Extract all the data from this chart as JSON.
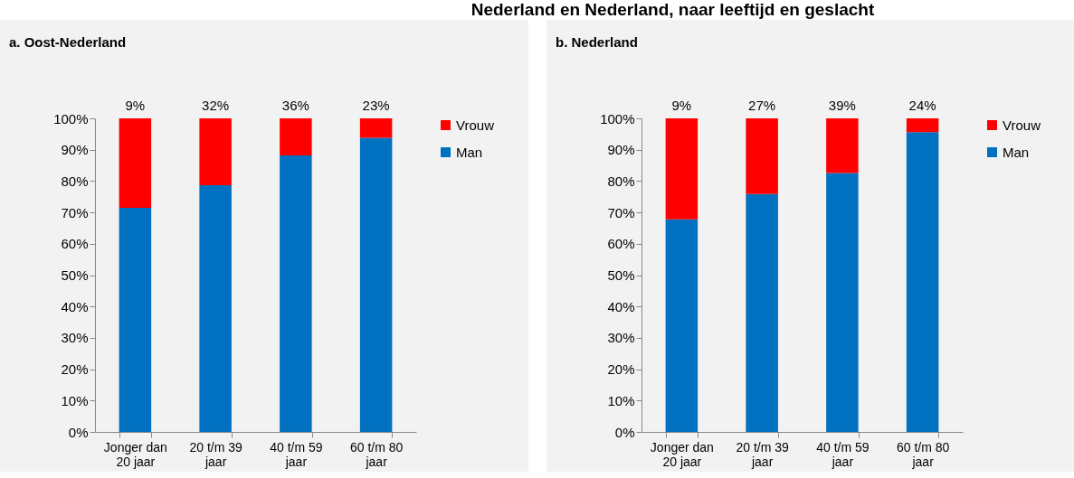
{
  "chart_data": [
    {
      "type": "bar",
      "title": "a. Oost-Nederland",
      "stacked": true,
      "legend": "right",
      "grid": false,
      "categories": [
        "Jonger dan 20 jaar",
        "20 t/m 39 jaar",
        "40 t/m 59 jaar",
        "60 t/m 80 jaar"
      ],
      "series": [
        {
          "name": "Man",
          "color": "#0070c0",
          "values": [
            71.5,
            78.7,
            88.2,
            93.8
          ]
        },
        {
          "name": "Vrouw",
          "color": "#ff0000",
          "values": [
            28.5,
            21.3,
            11.8,
            6.2
          ]
        }
      ],
      "ylim": [
        0,
        100
      ],
      "yticks": [
        {
          "value": 0,
          "label": "0%"
        },
        {
          "value": 10,
          "label": "10%"
        },
        {
          "value": 20,
          "label": "20%"
        },
        {
          "value": 30,
          "label": "30%"
        },
        {
          "value": 40,
          "label": "40%"
        },
        {
          "value": 50,
          "label": "50%"
        },
        {
          "value": 60,
          "label": "60%"
        },
        {
          "value": 70,
          "label": "70%"
        },
        {
          "value": 80,
          "label": "80%"
        },
        {
          "value": 90,
          "label": "90%"
        },
        {
          "value": 100,
          "label": "100%"
        }
      ],
      "annotations": [
        "Nederland en Nederland, naar leeftijd en geslacht",
        "9%",
        "32%",
        "36%",
        "23%"
      ]
    },
    {
      "type": "bar",
      "title": "b. Nederland",
      "stacked": true,
      "legend": "right",
      "grid": false,
      "categories": [
        "Jonger dan 20 jaar",
        "20 t/m 39 jaar",
        "40 t/m 59 jaar",
        "60 t/m 80 jaar"
      ],
      "series": [
        {
          "name": "Man",
          "color": "#0070c0",
          "values": [
            67.8,
            75.9,
            82.6,
            95.6
          ]
        },
        {
          "name": "Vrouw",
          "color": "#ff0000",
          "values": [
            32.2,
            24.1,
            17.4,
            4.4
          ]
        }
      ],
      "ylim": [
        0,
        100
      ],
      "yticks": [
        {
          "value": 0,
          "label": "0%"
        },
        {
          "value": 10,
          "label": "10%"
        },
        {
          "value": 20,
          "label": "20%"
        },
        {
          "value": 30,
          "label": "30%"
        },
        {
          "value": 40,
          "label": "40%"
        },
        {
          "value": 50,
          "label": "50%"
        },
        {
          "value": 60,
          "label": "60%"
        },
        {
          "value": 70,
          "label": "70%"
        },
        {
          "value": 80,
          "label": "80%"
        },
        {
          "value": 90,
          "label": "90%"
        },
        {
          "value": 100,
          "label": "100%"
        }
      ],
      "annotations": [
        "9%",
        "27%",
        "39%",
        "24%"
      ]
    }
  ]
}
